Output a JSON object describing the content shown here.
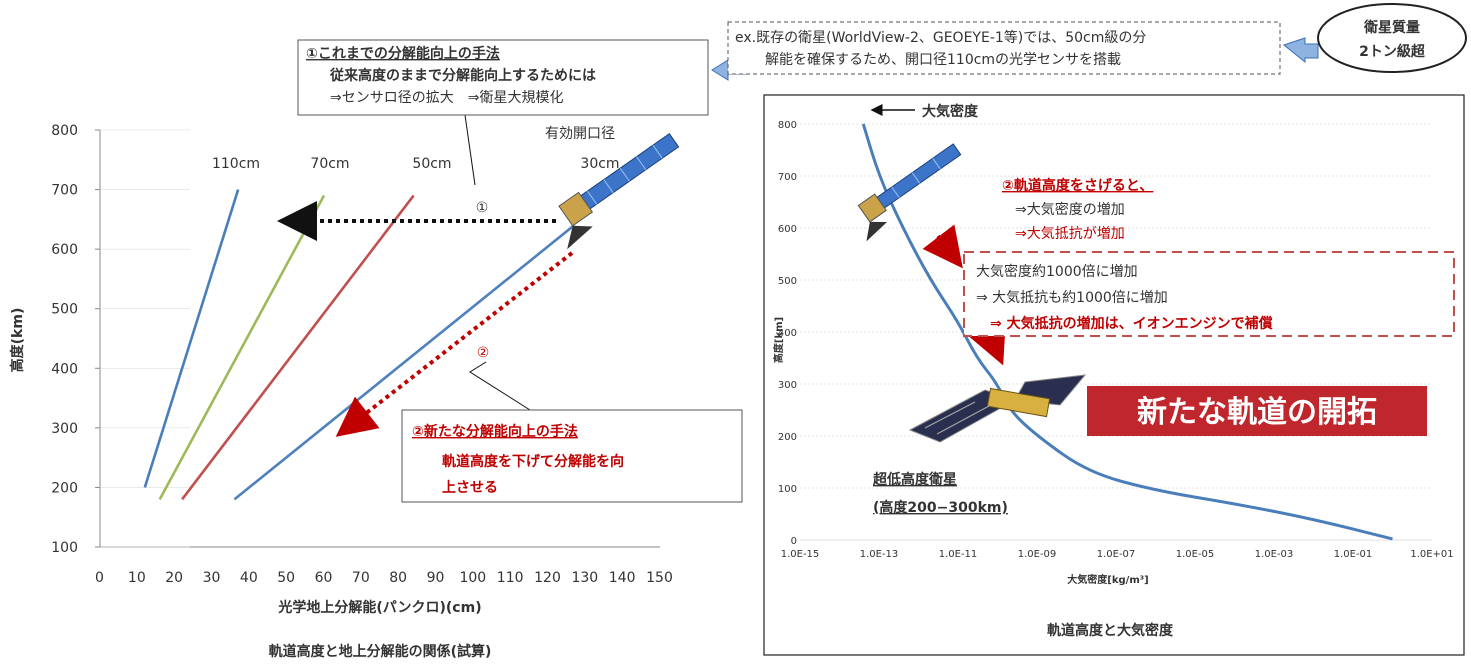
{
  "left_chart": {
    "bottom_title": "軌道高度と地上分解能の関係(試算)",
    "xlabel": "光学地上分解能(パンクロ)(cm)",
    "ylabel": "高度(km)",
    "x_ticks": [
      "0",
      "10",
      "20",
      "30",
      "40",
      "50",
      "60",
      "70",
      "80",
      "90",
      "100",
      "110",
      "120",
      "130",
      "140",
      "150"
    ],
    "y_ticks": [
      "100",
      "200",
      "300",
      "400",
      "500",
      "600",
      "700",
      "800"
    ],
    "aperture_heading": "有効開口径",
    "series_labels": [
      "110cm",
      "70cm",
      "50cm",
      "30cm"
    ],
    "marker1": "①",
    "marker2": "②"
  },
  "callout1": {
    "title": "①これまでの分解能向上の手法",
    "line1": "従来高度のままで分解能向上するためには",
    "line2": "⇒センサロ径の拡大　⇒衛星大規模化"
  },
  "callout_top": {
    "line1": "ex.既存の衛星(WorldView-2、GEOEYE-1等)では、50cm級の分",
    "line2": "解能を確保するため、開口径110cmの光学センサを搭載"
  },
  "ellipse": {
    "line1": "衛星質量",
    "line2": "2トン級超"
  },
  "callout2": {
    "title": "②新たな分解能向上の手法",
    "line1": "軌道高度を下げて分解能を向",
    "line2": "上させる"
  },
  "right_chart": {
    "bottom_title": "軌道高度と大気密度",
    "curve_label": "大気密度",
    "xlabel": "大気密度[kg/m³]",
    "ylabel": "高度[km]",
    "x_ticks": [
      "1.0E-15",
      "1.0E-13",
      "1.0E-11",
      "1.0E-09",
      "1.0E-07",
      "1.0E-05",
      "1.0E-03",
      "1.0E-01",
      "1.0E+01"
    ],
    "y_ticks": [
      "0",
      "100",
      "200",
      "300",
      "400",
      "500",
      "600",
      "700",
      "800"
    ],
    "ann_title": "②軌道高度をさげると、",
    "ann_line1": "⇒大気密度の増加",
    "ann_line2": "⇒大気抵抗が増加",
    "box_line1": "大気密度約1000倍に増加",
    "box_line2": "⇒  大気抵抗も約1000倍に増加",
    "box_line3": "⇒ 大気抵抗の増加は、イオンエンジンで補償",
    "banner": "新たな軌道の開拓",
    "sat_label1": "超低高度衛星",
    "sat_label2": "(高度200−300km)"
  },
  "chart_data": [
    {
      "type": "line",
      "xlabel": "光学地上分解能(パンクロ)(cm)",
      "ylabel": "高度(km)",
      "xlim": [
        0,
        150
      ],
      "ylim": [
        100,
        800
      ],
      "grid": false,
      "series": [
        {
          "name": "110cm",
          "color": "#4a7ebb",
          "x": [
            12,
            37
          ],
          "y": [
            200,
            700
          ]
        },
        {
          "name": "70cm",
          "color": "#9bbb59",
          "x": [
            16,
            60
          ],
          "y": [
            180,
            690
          ]
        },
        {
          "name": "50cm",
          "color": "#c0504d",
          "x": [
            22,
            84
          ],
          "y": [
            180,
            690
          ]
        },
        {
          "name": "30cm",
          "color": "#4f81bd",
          "x": [
            36,
            127
          ],
          "y": [
            180,
            640
          ]
        }
      ]
    },
    {
      "type": "line",
      "xlabel": "大気密度[kg/m³]",
      "ylabel": "高度[km]",
      "x_scale": "log",
      "xlim": [
        "1.0E-15",
        "1.0E+01"
      ],
      "ylim": [
        0,
        800
      ],
      "grid": true,
      "series": [
        {
          "name": "大気密度",
          "color": "#4a7ebb",
          "x": [
            "4.0E-14",
            "1.0E-13",
            "4.0E-13",
            "2.0E-12",
            "1.0E-11",
            "3.0E-11",
            "1.0E-10",
            "2.0E-10",
            "1.0E-09",
            "2.0E-08",
            "1.0E-06",
            "1.0E-04",
            "1.0E-02",
            "1.0E+00"
          ],
          "y": [
            800,
            700,
            600,
            500,
            420,
            350,
            300,
            250,
            200,
            130,
            95,
            70,
            40,
            2
          ]
        }
      ]
    }
  ]
}
